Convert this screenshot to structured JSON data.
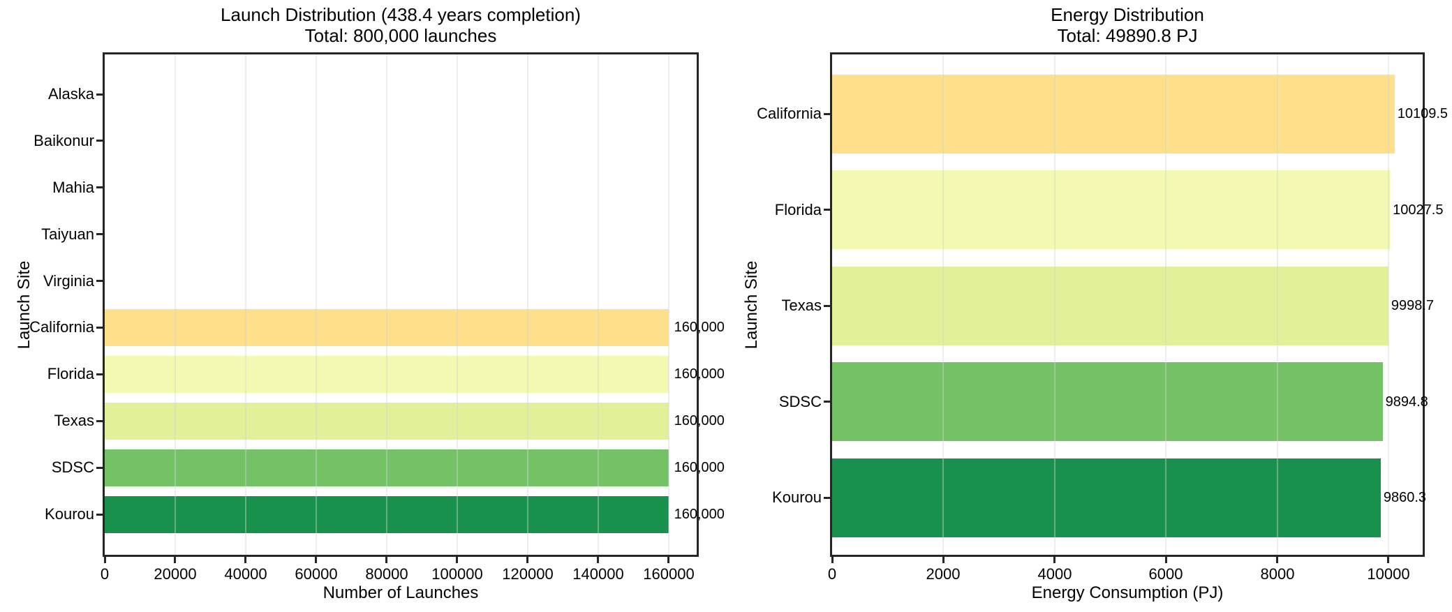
{
  "chart_data": [
    {
      "type": "bar",
      "orientation": "horizontal",
      "title": "Launch Distribution (438.4 years completion)",
      "subtitle": "Total: 800,000 launches",
      "xlabel": "Number of Launches",
      "ylabel": "Launch Site",
      "categories": [
        "Alaska",
        "Baikonur",
        "Mahia",
        "Taiyuan",
        "Virginia",
        "California",
        "Florida",
        "Texas",
        "SDSC",
        "Kourou"
      ],
      "values": [
        0,
        0,
        0,
        0,
        0,
        160000,
        160000,
        160000,
        160000,
        160000
      ],
      "value_labels": [
        "",
        "",
        "",
        "",
        "",
        "160,000",
        "160,000",
        "160,000",
        "160,000",
        "160,000"
      ],
      "bar_colors": [
        null,
        null,
        null,
        null,
        null,
        "#FEE08B",
        "#F3F9B0",
        "#E2F098",
        "#73C366",
        "#17914C"
      ],
      "total": "800,000 launches",
      "xlim": [
        0,
        168000
      ],
      "xticks": [
        0,
        20000,
        40000,
        60000,
        80000,
        100000,
        120000,
        140000,
        160000
      ],
      "xtick_labels": [
        "0",
        "20000",
        "40000",
        "60000",
        "80000",
        "100000",
        "120000",
        "140000",
        "160000"
      ],
      "grid": true,
      "legend": "none"
    },
    {
      "type": "bar",
      "orientation": "horizontal",
      "title": "Energy Distribution",
      "subtitle": "Total: 49890.8 PJ",
      "xlabel": "Energy Consumption (PJ)",
      "ylabel": "Launch Site",
      "categories": [
        "California",
        "Florida",
        "Texas",
        "SDSC",
        "Kourou"
      ],
      "values": [
        10109.5,
        10027.5,
        9998.7,
        9894.8,
        9860.3
      ],
      "value_labels": [
        "10109.5",
        "10027.5",
        "9998.7",
        "9894.8",
        "9860.3"
      ],
      "bar_colors": [
        "#FEE08B",
        "#F3F9B0",
        "#E2F098",
        "#73C366",
        "#17914C"
      ],
      "total": "49890.8 PJ",
      "xlim": [
        0,
        10615
      ],
      "xticks": [
        0,
        2000,
        4000,
        6000,
        8000,
        10000
      ],
      "xtick_labels": [
        "0",
        "2000",
        "4000",
        "6000",
        "8000",
        "10000"
      ],
      "grid": true,
      "legend": "none"
    }
  ]
}
